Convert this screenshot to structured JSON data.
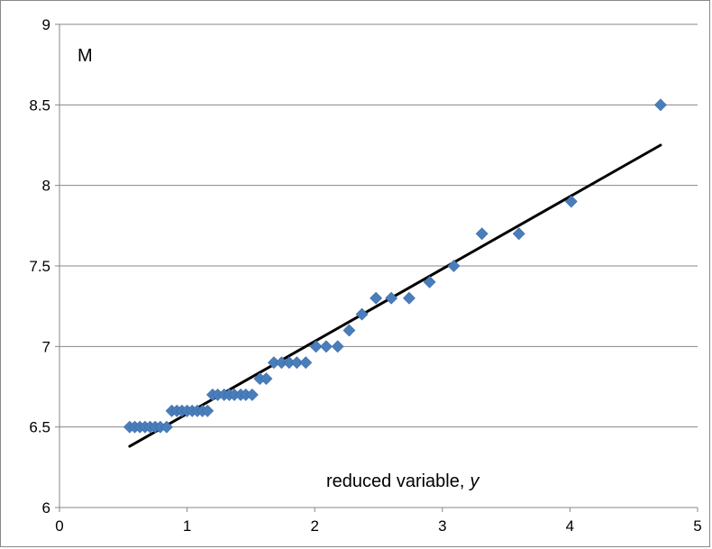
{
  "chart_data": {
    "type": "scatter",
    "title": "",
    "annotation_label": "M",
    "xlabel_text": "reduced variable,",
    "xlabel_var": "y",
    "ylabel": "",
    "xlim": [
      0,
      5
    ],
    "ylim": [
      6,
      9
    ],
    "x_ticks": [
      "0",
      "1",
      "2",
      "3",
      "4",
      "5"
    ],
    "y_ticks": [
      "6",
      "6.5",
      "7",
      "7.5",
      "8",
      "8.5",
      "9"
    ],
    "grid": "horizontal",
    "legend": "none",
    "marker": "diamond",
    "marker_color": "#4A7EBB",
    "line_color": "#000000",
    "points": [
      [
        0.55,
        6.5
      ],
      [
        0.59,
        6.5
      ],
      [
        0.63,
        6.5
      ],
      [
        0.67,
        6.5
      ],
      [
        0.71,
        6.5
      ],
      [
        0.75,
        6.5
      ],
      [
        0.79,
        6.5
      ],
      [
        0.84,
        6.5
      ],
      [
        0.88,
        6.6
      ],
      [
        0.92,
        6.6
      ],
      [
        0.96,
        6.6
      ],
      [
        1.0,
        6.6
      ],
      [
        1.04,
        6.6
      ],
      [
        1.08,
        6.6
      ],
      [
        1.12,
        6.6
      ],
      [
        1.16,
        6.6
      ],
      [
        1.2,
        6.7
      ],
      [
        1.24,
        6.7
      ],
      [
        1.29,
        6.7
      ],
      [
        1.33,
        6.7
      ],
      [
        1.37,
        6.7
      ],
      [
        1.42,
        6.7
      ],
      [
        1.46,
        6.7
      ],
      [
        1.51,
        6.7
      ],
      [
        1.57,
        6.8
      ],
      [
        1.62,
        6.8
      ],
      [
        1.68,
        6.9
      ],
      [
        1.74,
        6.9
      ],
      [
        1.8,
        6.9
      ],
      [
        1.86,
        6.9
      ],
      [
        1.93,
        6.9
      ],
      [
        2.01,
        7.0
      ],
      [
        2.09,
        7.0
      ],
      [
        2.18,
        7.0
      ],
      [
        2.27,
        7.1
      ],
      [
        2.37,
        7.2
      ],
      [
        2.48,
        7.3
      ],
      [
        2.6,
        7.3
      ],
      [
        2.74,
        7.3
      ],
      [
        2.9,
        7.4
      ],
      [
        3.09,
        7.5
      ],
      [
        3.31,
        7.7
      ],
      [
        3.6,
        7.7
      ],
      [
        4.01,
        7.9
      ],
      [
        4.71,
        8.5
      ]
    ],
    "trendline": [
      [
        0.55,
        6.38
      ],
      [
        4.71,
        8.25
      ]
    ]
  }
}
